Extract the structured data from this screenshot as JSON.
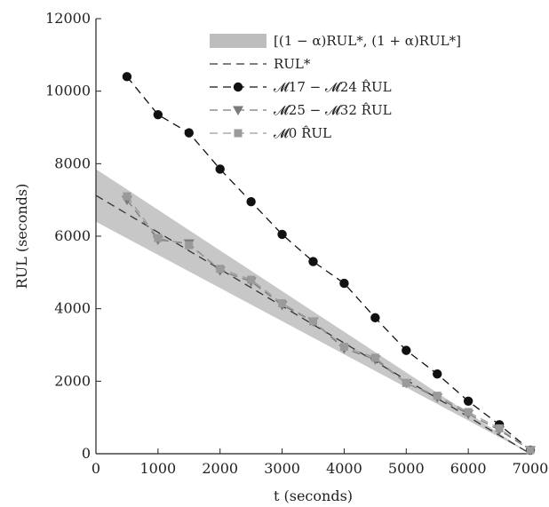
{
  "chart_data": {
    "type": "line",
    "xlabel": "t (seconds)",
    "ylabel": "RUL (seconds)",
    "xlim": [
      0,
      7000
    ],
    "ylim": [
      0,
      12000
    ],
    "x_ticks": [
      "0",
      "1000",
      "2000",
      "3000",
      "4000",
      "5000",
      "6000",
      "7000"
    ],
    "y_ticks": [
      "0",
      "2000",
      "4000",
      "6000",
      "8000",
      "10000",
      "12000"
    ],
    "grid": false,
    "legend_position": "top-right",
    "band": {
      "name": "[(1 − α)RUL*, (1 + α)RUL*]",
      "x": [
        0,
        7000
      ],
      "lower": [
        6400,
        0
      ],
      "upper": [
        7850,
        0
      ]
    },
    "series": [
      {
        "name": "RUL*",
        "style": "dashed",
        "marker": "none",
        "x": [
          0,
          7000
        ],
        "y": [
          7125,
          0
        ]
      },
      {
        "name": "𝓜17 − 𝓜24 R̂UL",
        "style": "dashed",
        "marker": "circle",
        "x": [
          500,
          1000,
          1500,
          2000,
          2500,
          3000,
          3500,
          4000,
          4500,
          5000,
          5500,
          6000,
          6500,
          7000
        ],
        "y": [
          10400,
          9350,
          8850,
          7850,
          6950,
          6050,
          5300,
          4700,
          3750,
          2850,
          2200,
          1450,
          800,
          100
        ]
      },
      {
        "name": "𝓜25 − 𝓜32 R̂UL",
        "style": "dashed",
        "marker": "triangle-down",
        "x": [
          500,
          1000,
          1500,
          2000,
          2500,
          3000,
          3500,
          4000,
          4500,
          5000,
          5500,
          6000,
          6500,
          7000
        ],
        "y": [
          7000,
          5900,
          5800,
          5050,
          4750,
          4100,
          3650,
          2900,
          2600,
          1950,
          1550,
          1100,
          650,
          100
        ]
      },
      {
        "name": "𝓜0 R̂UL",
        "style": "dashed",
        "marker": "square",
        "x": [
          500,
          1000,
          1500,
          2000,
          2500,
          3000,
          3500,
          4000,
          4500,
          5000,
          5500,
          6000,
          6500,
          7000
        ],
        "y": [
          7100,
          5950,
          5750,
          5100,
          4800,
          4150,
          3650,
          2950,
          2650,
          1950,
          1600,
          1150,
          700,
          100
        ]
      }
    ]
  },
  "colors": {
    "band": "#bdbdbd",
    "rul_star": "#333333",
    "circle_series": "#111111",
    "triangle_series": "#7a7a7a",
    "square_series": "#9a9a9a"
  }
}
